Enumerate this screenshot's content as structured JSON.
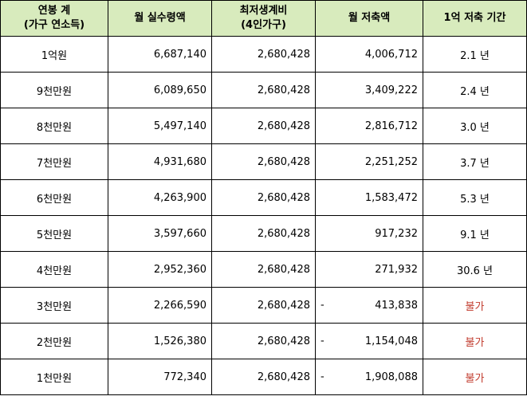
{
  "table": {
    "headers": [
      {
        "line1": "연봉 계",
        "line2": "(가구 연소득)"
      },
      {
        "line1": "월 실수령액",
        "line2": ""
      },
      {
        "line1": "최저생계비",
        "line2": "(4인가구)"
      },
      {
        "line1": "월 저축액",
        "line2": ""
      },
      {
        "line1": "1억 저축 기간",
        "line2": ""
      }
    ],
    "rows": [
      {
        "income": "1억원",
        "net": "6,687,140",
        "min": "2,680,428",
        "sign": "",
        "saving": "4,006,712",
        "period": "2.1 년"
      },
      {
        "income": "9천만원",
        "net": "6,089,650",
        "min": "2,680,428",
        "sign": "",
        "saving": "3,409,222",
        "period": "2.4 년"
      },
      {
        "income": "8천만원",
        "net": "5,497,140",
        "min": "2,680,428",
        "sign": "",
        "saving": "2,816,712",
        "period": "3.0 년"
      },
      {
        "income": "7천만원",
        "net": "4,931,680",
        "min": "2,680,428",
        "sign": "",
        "saving": "2,251,252",
        "period": "3.7 년"
      },
      {
        "income": "6천만원",
        "net": "4,263,900",
        "min": "2,680,428",
        "sign": "",
        "saving": "1,583,472",
        "period": "5.3 년"
      },
      {
        "income": "5천만원",
        "net": "3,597,660",
        "min": "2,680,428",
        "sign": "",
        "saving": "917,232",
        "period": "9.1 년"
      },
      {
        "income": "4천만원",
        "net": "2,952,360",
        "min": "2,680,428",
        "sign": "",
        "saving": "271,932",
        "period": "30.6 년"
      },
      {
        "income": "3천만원",
        "net": "2,266,590",
        "min": "2,680,428",
        "sign": "-",
        "saving": "413,838",
        "period": "불가"
      },
      {
        "income": "2천만원",
        "net": "1,526,380",
        "min": "2,680,428",
        "sign": "-",
        "saving": "1,154,048",
        "period": "불가"
      },
      {
        "income": "1천만원",
        "net": "772,340",
        "min": "2,680,428",
        "sign": "-",
        "saving": "1,908,088",
        "period": "불가"
      }
    ]
  },
  "colors": {
    "header_bg": "#d8ebbd",
    "unavailable_text": "#c0392b"
  }
}
